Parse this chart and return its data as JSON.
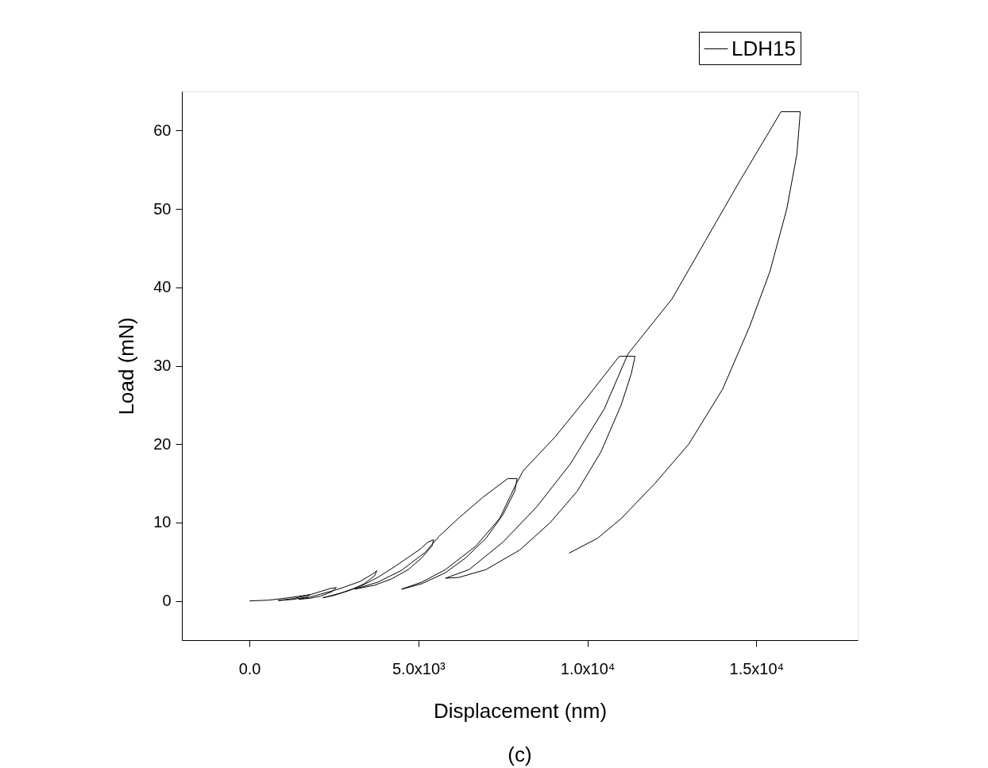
{
  "chart_data": {
    "type": "line",
    "xlabel": "Displacement (nm)",
    "ylabel": "Load (mN)",
    "annotations": [
      "(c)"
    ],
    "xlim": [
      -2000,
      18000
    ],
    "ylim": [
      -5,
      65
    ],
    "xticks": [
      {
        "value": 0,
        "label": "0.0"
      },
      {
        "value": 5000,
        "label": "5.0x10³"
      },
      {
        "value": 10000,
        "label": "1.0x10⁴"
      },
      {
        "value": 15000,
        "label": "1.5x10⁴"
      }
    ],
    "yticks": [
      0,
      10,
      20,
      30,
      40,
      50,
      60
    ],
    "grid": false,
    "legend": "top right",
    "marker": "none",
    "line_style": "solid",
    "series": [
      {
        "name": "LDH15",
        "color": "#000000",
        "x": [
          0,
          570,
          1160,
          1630,
          1790,
          1700,
          1300,
          850,
          1300,
          1800,
          2100,
          2400,
          2570,
          2450,
          2100,
          1800,
          1460,
          1800,
          2300,
          2700,
          3280,
          3630,
          3770,
          3700,
          3400,
          3000,
          2500,
          2170,
          2700,
          3300,
          3800,
          4340,
          5050,
          5280,
          5450,
          5400,
          5100,
          4700,
          4200,
          3700,
          3110,
          3800,
          4500,
          5200,
          5600,
          6200,
          6900,
          7640,
          7920,
          7850,
          7500,
          7000,
          6400,
          5800,
          5100,
          4600,
          4500,
          5100,
          5800,
          6700,
          7400,
          7900,
          8100,
          9060,
          10000,
          10940,
          11410,
          11300,
          11000,
          10400,
          9700,
          8900,
          8000,
          7000,
          6200,
          5800,
          6500,
          7500,
          8500,
          9500,
          10500,
          11200,
          12500,
          13500,
          14500,
          15730,
          16300,
          16200,
          15900,
          15400,
          14800,
          14000,
          13000,
          12000,
          11000,
          10300,
          9460
        ],
        "values": [
          0,
          0.1,
          0.4,
          0.7,
          0.8,
          0.5,
          0.2,
          0.05,
          0.3,
          0.8,
          1.2,
          1.6,
          1.7,
          1.2,
          0.6,
          0.35,
          0.2,
          0.5,
          1.1,
          1.6,
          2.5,
          3.4,
          3.85,
          3.2,
          2.2,
          1.4,
          0.7,
          0.4,
          1.0,
          1.9,
          3.0,
          4.5,
          6.6,
          7.5,
          7.8,
          7.0,
          5.5,
          4.0,
          2.8,
          2.0,
          1.5,
          2.4,
          3.9,
          6.2,
          8.2,
          10.6,
          13.2,
          15.6,
          15.6,
          14.0,
          11.0,
          8.0,
          5.5,
          3.6,
          2.2,
          1.6,
          1.5,
          2.4,
          4.0,
          7.0,
          10.5,
          15.0,
          16.6,
          21.0,
          26.0,
          31.2,
          31.2,
          29,
          25,
          19,
          14,
          10,
          6.5,
          4.0,
          3.0,
          2.9,
          4.0,
          7.5,
          12,
          17.5,
          24.5,
          31.5,
          38.5,
          46,
          53.5,
          62.4,
          62.4,
          57,
          50,
          42,
          35,
          27,
          20,
          15,
          10.5,
          8,
          6.1
        ]
      }
    ]
  }
}
